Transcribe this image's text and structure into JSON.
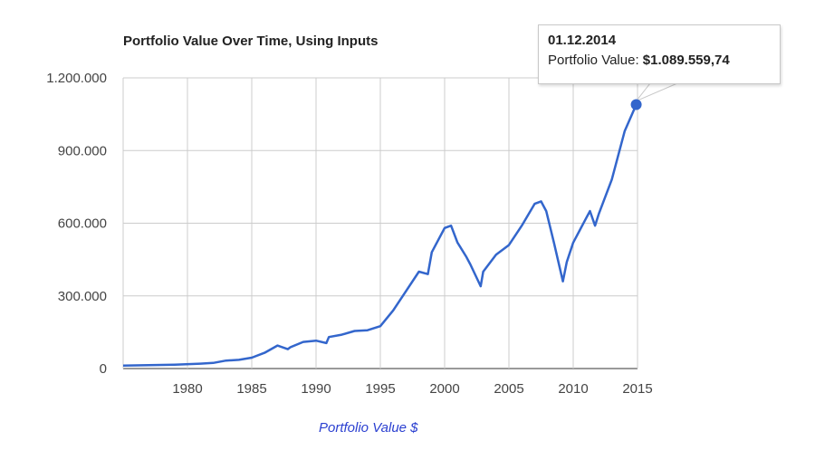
{
  "chart_data": {
    "type": "line",
    "title": "Portfolio Value Over Time, Using Inputs",
    "xlabel": "",
    "ylabel": "",
    "xlim": [
      1975,
      2015
    ],
    "ylim": [
      0,
      1200000
    ],
    "x_ticks": [
      "1980",
      "1985",
      "1990",
      "1995",
      "2000",
      "2005",
      "2010",
      "2015"
    ],
    "y_ticks": [
      "0",
      "300.000",
      "600.000",
      "900.000",
      "1.200.000"
    ],
    "grid": true,
    "legend_position": "bottom",
    "series": [
      {
        "name": "Portfolio Value $",
        "color": "#3366cc",
        "x": [
          1975,
          1977,
          1979,
          1981,
          1982,
          1983,
          1984,
          1985,
          1986,
          1987,
          1987.8,
          1988,
          1989,
          1990,
          1990.8,
          1991,
          1992,
          1993,
          1994,
          1995,
          1996,
          1997,
          1998,
          1998.7,
          1999,
          2000,
          2000.5,
          2001,
          2001.7,
          2002,
          2002.8,
          2003,
          2004,
          2005,
          2006,
          2007,
          2007.5,
          2007.9,
          2008.5,
          2009.2,
          2009.5,
          2010,
          2010.5,
          2011,
          2011.3,
          2011.7,
          2012,
          2013,
          2014,
          2014.9
        ],
        "values": [
          12000,
          14000,
          16000,
          20000,
          23000,
          33000,
          36000,
          45000,
          65000,
          95000,
          80000,
          88000,
          110000,
          115000,
          105000,
          130000,
          140000,
          155000,
          158000,
          175000,
          240000,
          320000,
          400000,
          390000,
          480000,
          580000,
          590000,
          520000,
          460000,
          430000,
          340000,
          400000,
          470000,
          510000,
          590000,
          680000,
          690000,
          650000,
          520000,
          360000,
          440000,
          520000,
          570000,
          620000,
          650000,
          590000,
          640000,
          780000,
          980000,
          1089560
        ]
      }
    ]
  },
  "tooltip": {
    "date": "01.12.2014",
    "label": "Portfolio Value:",
    "value": "$1.089.559,74"
  }
}
